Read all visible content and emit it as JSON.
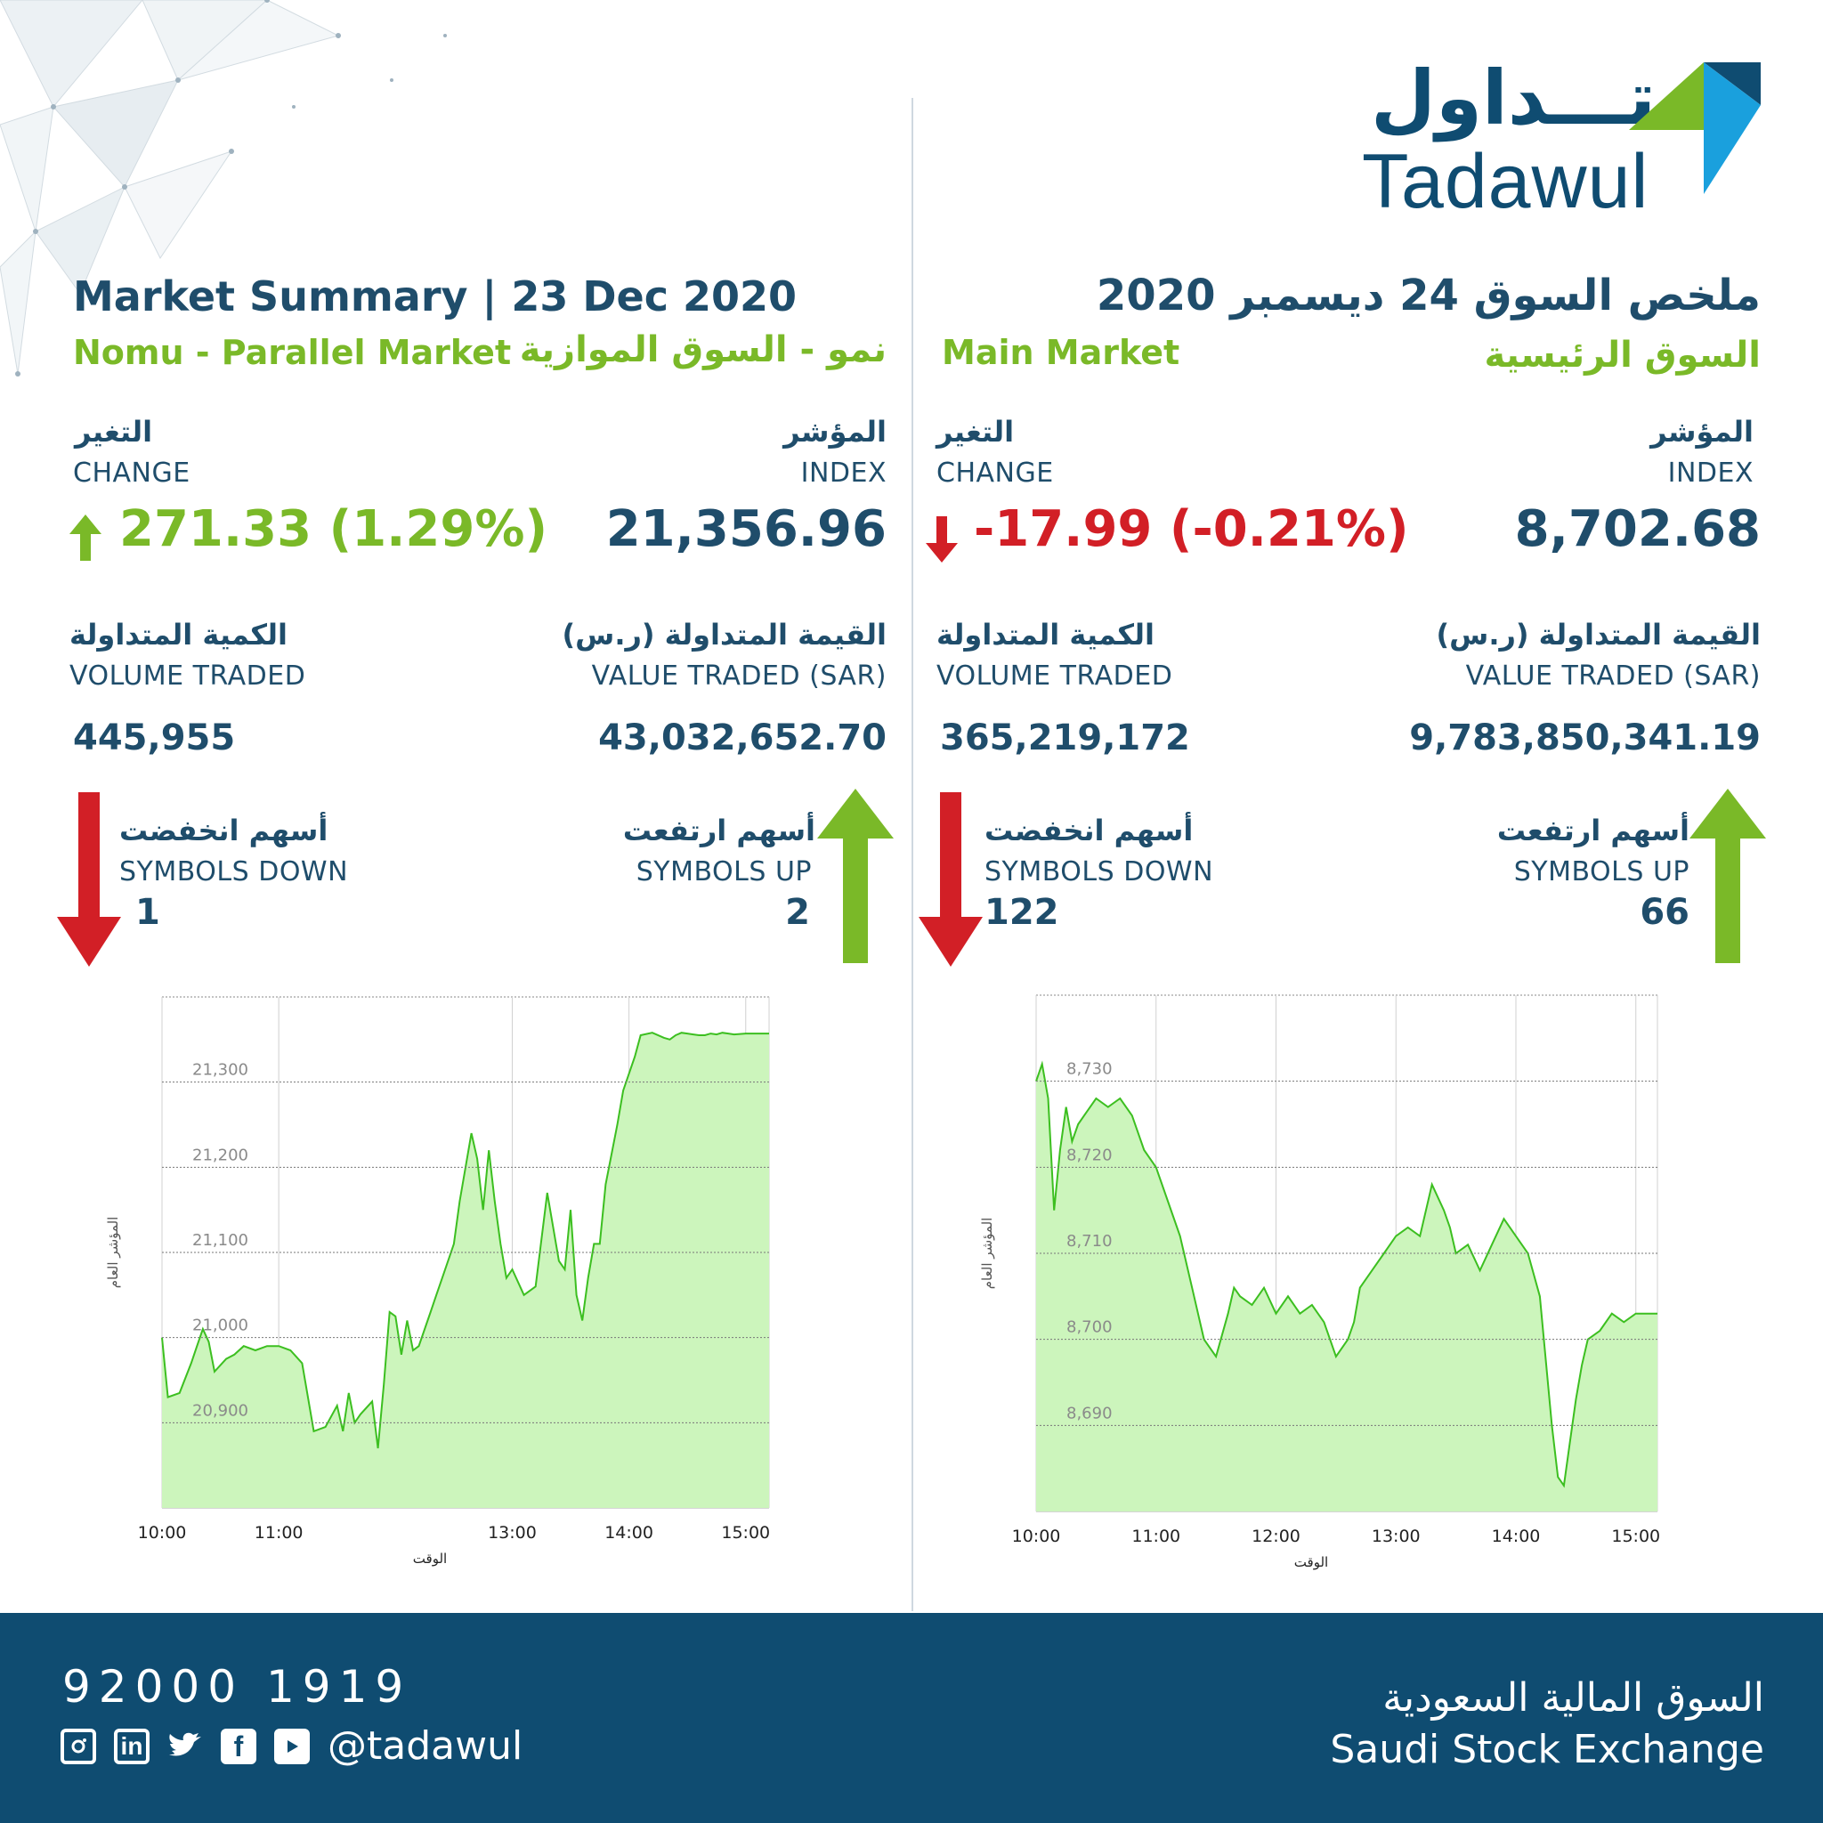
{
  "brand": {
    "arabic_logo": "تـــداول",
    "latin_logo": "Tadawul",
    "colors": {
      "navy": "#1f4d6b",
      "green": "#7ab928",
      "red": "#d21f26",
      "blue": "#1aa0dd",
      "footer": "#0f4c71"
    }
  },
  "right_panel": {
    "title_ar": "ملخص السوق 24 ديسمبر 2020",
    "market_en": "Main Market",
    "market_ar": "السوق الرئيسية",
    "index_ar": "المؤشر",
    "index_en": "INDEX",
    "index_value": "8,702.68",
    "change_ar": "التغير",
    "change_en": "CHANGE",
    "change_value": "-17.99 (-0.21%)",
    "value_traded_ar": "القيمة المتداولة (ر.س)",
    "value_traded_en": "VALUE TRADED (SAR)",
    "value_traded": "9,783,850,341.19",
    "volume_ar": "الكمية المتداولة",
    "volume_en": "VOLUME TRADED",
    "volume": "365,219,172",
    "up_ar": "أسهم ارتفعت",
    "up_en": "SYMBOLS UP",
    "up_count": "66",
    "down_ar": "أسهم انخفضت",
    "down_en": "SYMBOLS DOWN",
    "down_count": "122"
  },
  "left_panel": {
    "title_en": "Market Summary | 23 Dec 2020",
    "market_en": "Nomu - Parallel Market",
    "market_ar": "نمو - السوق الموازية",
    "index_ar": "المؤشر",
    "index_en": "INDEX",
    "index_value": "21,356.96",
    "change_ar": "التغير",
    "change_en": "CHANGE",
    "change_value": "271.33 (1.29%)",
    "value_traded_ar": "القيمة المتداولة (ر.س)",
    "value_traded_en": "VALUE TRADED (SAR)",
    "value_traded": "43,032,652.70",
    "volume_ar": "الكمية المتداولة",
    "volume_en": "VOLUME TRADED",
    "volume": "445,955",
    "up_ar": "أسهم ارتفعت",
    "up_en": "SYMBOLS UP",
    "up_count": "2",
    "down_ar": "أسهم انخفضت",
    "down_en": "SYMBOLS DOWN",
    "down_count": "1"
  },
  "chart_data": [
    {
      "type": "area",
      "ylabel": "المؤشر العام",
      "xlabel": "الوقت",
      "x_ticks": [
        "10:00",
        "11:00",
        "13:00",
        "14:00",
        "15:00"
      ],
      "x_tick_hours": [
        10,
        11,
        13,
        14,
        15
      ],
      "xlim": [
        10,
        15.2
      ],
      "y_ticks": [
        20900,
        21000,
        21100,
        21200,
        21300
      ],
      "y_tick_labels": [
        "20,900",
        "21,000",
        "21,100",
        "21,200",
        "21,300"
      ],
      "ylim": [
        20800,
        21400
      ],
      "grid": true,
      "x": [
        10.0,
        10.05,
        10.15,
        10.25,
        10.3,
        10.35,
        10.4,
        10.45,
        10.55,
        10.62,
        10.7,
        10.8,
        10.9,
        11.0,
        11.1,
        11.2,
        11.3,
        11.4,
        11.5,
        11.55,
        11.6,
        11.65,
        11.7,
        11.8,
        11.85,
        11.9,
        11.95,
        12.0,
        12.05,
        12.1,
        12.15,
        12.2,
        12.3,
        12.35,
        12.4,
        12.5,
        12.55,
        12.65,
        12.7,
        12.75,
        12.8,
        12.85,
        12.9,
        12.95,
        13.0,
        13.1,
        13.2,
        13.3,
        13.4,
        13.45,
        13.5,
        13.55,
        13.6,
        13.65,
        13.7,
        13.75,
        13.8,
        13.9,
        13.95,
        14.05,
        14.1,
        14.2,
        14.3,
        14.35,
        14.4,
        14.45,
        14.5,
        14.55,
        14.6,
        14.65,
        14.7,
        14.75,
        14.8,
        14.85,
        14.9,
        15.0,
        15.2
      ],
      "y": [
        21000,
        20930,
        20935,
        20970,
        20990,
        21010,
        20995,
        20960,
        20975,
        20980,
        20990,
        20985,
        20990,
        20990,
        20985,
        20970,
        20890,
        20895,
        20920,
        20890,
        20935,
        20900,
        20910,
        20925,
        20870,
        20945,
        21030,
        21025,
        20980,
        21020,
        20985,
        20990,
        21030,
        21050,
        21070,
        21110,
        21160,
        21240,
        21210,
        21150,
        21220,
        21160,
        21110,
        21070,
        21080,
        21050,
        21060,
        21170,
        21090,
        21080,
        21150,
        21050,
        21020,
        21070,
        21110,
        21110,
        21180,
        21250,
        21290,
        21330,
        21355,
        21358,
        21352,
        21350,
        21355,
        21358,
        21357,
        21356,
        21355,
        21355,
        21357,
        21356,
        21358,
        21357,
        21356,
        21357,
        21357
      ]
    },
    {
      "type": "area",
      "ylabel": "المؤشر العام",
      "xlabel": "الوقت",
      "x_ticks": [
        "10:00",
        "11:00",
        "12:00",
        "13:00",
        "14:00",
        "15:00"
      ],
      "x_tick_hours": [
        10,
        11,
        12,
        13,
        14,
        15
      ],
      "xlim": [
        10,
        15.18
      ],
      "y_ticks": [
        8690,
        8700,
        8710,
        8720,
        8730
      ],
      "y_tick_labels": [
        "8,690",
        "8,700",
        "8,710",
        "8,720",
        "8,730"
      ],
      "ylim": [
        8680,
        8740
      ],
      "grid": true,
      "x": [
        10.0,
        10.05,
        10.1,
        10.15,
        10.2,
        10.25,
        10.3,
        10.35,
        10.4,
        10.5,
        10.6,
        10.7,
        10.8,
        10.9,
        11.0,
        11.1,
        11.2,
        11.3,
        11.4,
        11.5,
        11.6,
        11.65,
        11.7,
        11.8,
        11.9,
        12.0,
        12.1,
        12.2,
        12.3,
        12.4,
        12.5,
        12.6,
        12.65,
        12.7,
        12.8,
        12.9,
        13.0,
        13.1,
        13.2,
        13.3,
        13.4,
        13.45,
        13.5,
        13.6,
        13.7,
        13.8,
        13.9,
        14.0,
        14.1,
        14.2,
        14.3,
        14.35,
        14.4,
        14.45,
        14.5,
        14.55,
        14.6,
        14.7,
        14.8,
        14.9,
        15.0,
        15.18
      ],
      "y": [
        8730,
        8732,
        8728,
        8715,
        8722,
        8727,
        8723,
        8725,
        8726,
        8728,
        8727,
        8728,
        8726,
        8722,
        8720,
        8716,
        8712,
        8706,
        8700,
        8698,
        8703,
        8706,
        8705,
        8704,
        8706,
        8703,
        8705,
        8703,
        8704,
        8702,
        8698,
        8700,
        8702,
        8706,
        8708,
        8710,
        8712,
        8713,
        8712,
        8718,
        8715,
        8713,
        8710,
        8711,
        8708,
        8711,
        8714,
        8712,
        8710,
        8705,
        8690,
        8684,
        8683,
        8688,
        8693,
        8697,
        8700,
        8701,
        8703,
        8702,
        8703,
        8703
      ]
    }
  ],
  "footer": {
    "phone": "92000 1919",
    "handle": "@tadawul",
    "social_icons": [
      "instagram-icon",
      "linkedin-icon",
      "twitter-icon",
      "facebook-icon",
      "youtube-icon"
    ],
    "exchange_ar": "السوق المالية السعودية",
    "exchange_en": "Saudi Stock Exchange"
  }
}
